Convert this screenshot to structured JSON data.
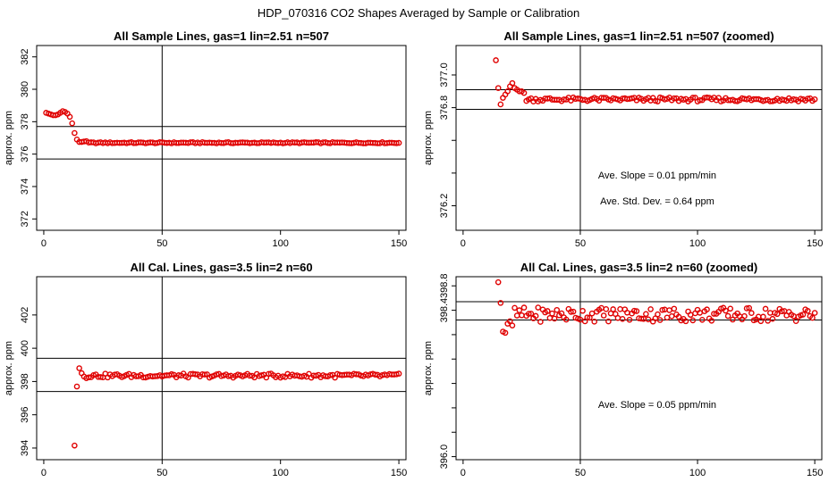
{
  "page": {
    "title": "HDP_070316  CO2 Shapes Averaged by Sample or Calibration"
  },
  "chart_data": [
    {
      "type": "scatter",
      "title": "All Sample Lines, gas=1 lin=2.51 n=507",
      "ylabel": "approx. ppm",
      "xlim": [
        -3,
        153
      ],
      "ylim": [
        371.3,
        382.7
      ],
      "xticks": [
        0,
        50,
        100,
        150
      ],
      "yticks": [
        372,
        374,
        376,
        378,
        380,
        382
      ],
      "xticklabels": [
        "0",
        "50",
        "100",
        "150"
      ],
      "yticklabels": [
        "372",
        "374",
        "376",
        "378",
        "380",
        "382"
      ],
      "vline": 50,
      "hlines": [
        375.7,
        377.7
      ],
      "annotations": [],
      "points": {
        "x_start": 1,
        "x_end": 150,
        "head": [
          378.55,
          378.5,
          378.45,
          378.4,
          378.4,
          378.45,
          378.55,
          378.65,
          378.6,
          378.5,
          378.3,
          377.9,
          377.3,
          376.9,
          376.75,
          376.75,
          376.78,
          376.8
        ],
        "y": 376.7
      }
    },
    {
      "type": "scatter",
      "title": "All Sample Lines, gas=1 lin=2.51 n=507 (zoomed)",
      "ylabel": "approx. ppm",
      "xlim": [
        -3,
        153
      ],
      "ylim": [
        376.05,
        377.18
      ],
      "xticks": [
        0,
        50,
        100,
        150
      ],
      "yticks": [
        376.2,
        376.4,
        376.6,
        376.8,
        377.0
      ],
      "xticklabels": [
        "0",
        "50",
        "100",
        "150"
      ],
      "yticklabels": [
        "376.2",
        "",
        "",
        "376.8",
        "377.0"
      ],
      "vline": 50,
      "hlines": [
        376.79,
        376.91
      ],
      "annotations": [
        "Ave. Slope =  0.01  ppm/min",
        "Ave. Std. Dev. =  0.64  ppm"
      ],
      "points": {
        "x_start": 14,
        "x_end": 150,
        "head": [
          377.09,
          376.92,
          376.82,
          376.86,
          376.88,
          376.9,
          376.93,
          376.95,
          376.92,
          376.91,
          376.9,
          376.9,
          376.89
        ],
        "y": 376.85
      }
    },
    {
      "type": "scatter",
      "title": "All Cal. Lines, gas=3.5 lin=2 n=60",
      "ylabel": "approx. ppm",
      "xlim": [
        -3,
        153
      ],
      "ylim": [
        393.3,
        404.3
      ],
      "xticks": [
        0,
        50,
        100,
        150
      ],
      "yticks": [
        394,
        396,
        398,
        400,
        402
      ],
      "xticklabels": [
        "0",
        "50",
        "100",
        "150"
      ],
      "yticklabels": [
        "394",
        "396",
        "398",
        "400",
        "402"
      ],
      "vline": 50,
      "hlines": [
        397.4,
        399.4
      ],
      "annotations": [],
      "points": {
        "x_start": 13,
        "x_end": 150,
        "head": [
          394.15,
          397.7,
          398.8,
          398.5,
          398.3,
          398.2,
          398.25
        ],
        "y": 398.35
      }
    },
    {
      "type": "scatter",
      "title": "All Cal. Lines, gas=3.5 lin=2 n=60 (zoomed)",
      "ylabel": "approx. ppm",
      "xlim": [
        -3,
        153
      ],
      "ylim": [
        395.95,
        398.95
      ],
      "xticks": [
        0,
        50,
        100,
        150
      ],
      "yticks": [
        396.0,
        396.4,
        396.8,
        397.2,
        397.6,
        398.0,
        398.4,
        398.8
      ],
      "xticklabels": [
        "0",
        "50",
        "100",
        "150"
      ],
      "yticklabels": [
        "396.0",
        "",
        "",
        "",
        "",
        "",
        "398.4",
        "398.8"
      ],
      "vline": 50,
      "hlines": [
        398.24,
        398.54
      ],
      "annotations": [
        "Ave. Slope =  0.05  ppm/min"
      ],
      "points": {
        "x_start": 15,
        "x_end": 150,
        "head": [
          398.86,
          398.52,
          398.05,
          398.03,
          398.18,
          398.22,
          398.15
        ],
        "y": 398.33
      }
    }
  ]
}
